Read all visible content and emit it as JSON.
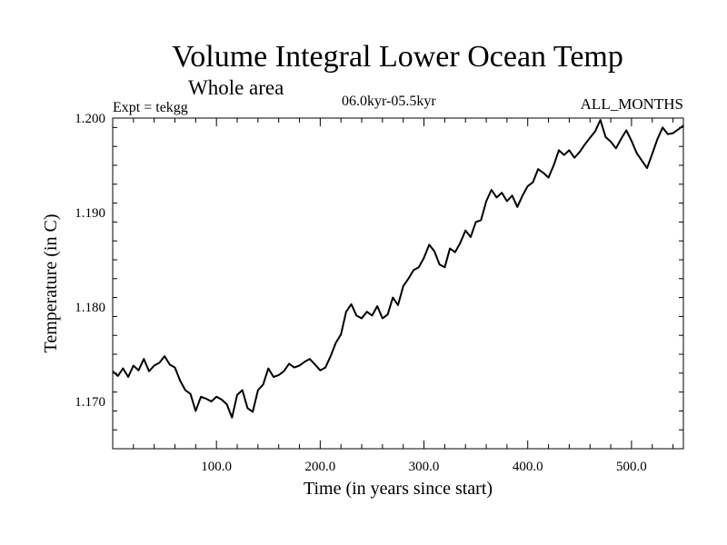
{
  "header": {
    "title": "Volume Integral Lower Ocean Temp",
    "subtitle": "Whole area",
    "experiment": "Expt = tekgg",
    "period": "06.0kyr-05.5kyr",
    "months": "ALL_MONTHS"
  },
  "chart_data": {
    "type": "line",
    "title": "Volume Integral Lower Ocean Temp",
    "xlabel": "Time (in years since start)",
    "ylabel": "Temperature (in C)",
    "xlim": [
      0,
      550
    ],
    "ylim": [
      1.165,
      1.2
    ],
    "xticks": [
      100,
      200,
      300,
      400,
      500
    ],
    "xtick_labels": [
      "100.0",
      "200.0",
      "300.0",
      "400.0",
      "500.0"
    ],
    "yticks": [
      1.17,
      1.18,
      1.19,
      1.2
    ],
    "ytick_labels": [
      "1.170",
      "1.180",
      "1.190",
      "1.200"
    ],
    "grid": false,
    "line_color": "#000000",
    "series": [
      {
        "name": "Volume Integral Lower Ocean Temp",
        "x": [
          0,
          5,
          10,
          15,
          20,
          25,
          30,
          35,
          40,
          45,
          50,
          55,
          60,
          65,
          70,
          75,
          80,
          85,
          90,
          95,
          100,
          105,
          110,
          115,
          120,
          125,
          130,
          135,
          140,
          145,
          150,
          155,
          160,
          165,
          170,
          175,
          180,
          185,
          190,
          195,
          200,
          205,
          210,
          215,
          220,
          225,
          230,
          235,
          240,
          245,
          250,
          255,
          260,
          265,
          270,
          275,
          280,
          285,
          290,
          295,
          300,
          305,
          310,
          315,
          320,
          325,
          330,
          335,
          340,
          345,
          350,
          355,
          360,
          365,
          370,
          375,
          380,
          385,
          390,
          395,
          400,
          405,
          410,
          415,
          420,
          425,
          430,
          435,
          440,
          445,
          450,
          455,
          460,
          465,
          470,
          475,
          480,
          485,
          490,
          495,
          500,
          505,
          510,
          515,
          520,
          525,
          530,
          535,
          540,
          545,
          550
        ],
        "values": [
          1.1732,
          1.1727,
          1.1735,
          1.1726,
          1.1738,
          1.1733,
          1.1745,
          1.1732,
          1.1738,
          1.1741,
          1.1748,
          1.1739,
          1.1736,
          1.1722,
          1.1712,
          1.1708,
          1.169,
          1.1705,
          1.1703,
          1.17,
          1.1705,
          1.1702,
          1.1697,
          1.1683,
          1.1707,
          1.1712,
          1.1693,
          1.1689,
          1.1712,
          1.1718,
          1.1735,
          1.1726,
          1.1728,
          1.1732,
          1.174,
          1.1736,
          1.1738,
          1.1742,
          1.1745,
          1.1739,
          1.1733,
          1.1736,
          1.1748,
          1.1762,
          1.1771,
          1.1795,
          1.1803,
          1.1791,
          1.1788,
          1.1795,
          1.1791,
          1.1801,
          1.1788,
          1.1792,
          1.181,
          1.1802,
          1.1822,
          1.183,
          1.1839,
          1.1842,
          1.1852,
          1.1866,
          1.1859,
          1.1845,
          1.1842,
          1.1862,
          1.1858,
          1.1868,
          1.1881,
          1.1874,
          1.189,
          1.1892,
          1.1912,
          1.1924,
          1.1916,
          1.1921,
          1.1912,
          1.1918,
          1.1906,
          1.1918,
          1.1928,
          1.1932,
          1.1946,
          1.1942,
          1.1937,
          1.195,
          1.1966,
          1.1961,
          1.1966,
          1.1958,
          1.1964,
          1.1972,
          1.1979,
          1.1986,
          1.1998,
          1.198,
          1.1975,
          1.1968,
          1.1978,
          1.1987,
          1.1976,
          1.1963,
          1.1955,
          1.1947,
          1.1962,
          1.1978,
          1.199,
          1.1983,
          1.1984,
          1.1988,
          1.1992
        ]
      }
    ]
  }
}
